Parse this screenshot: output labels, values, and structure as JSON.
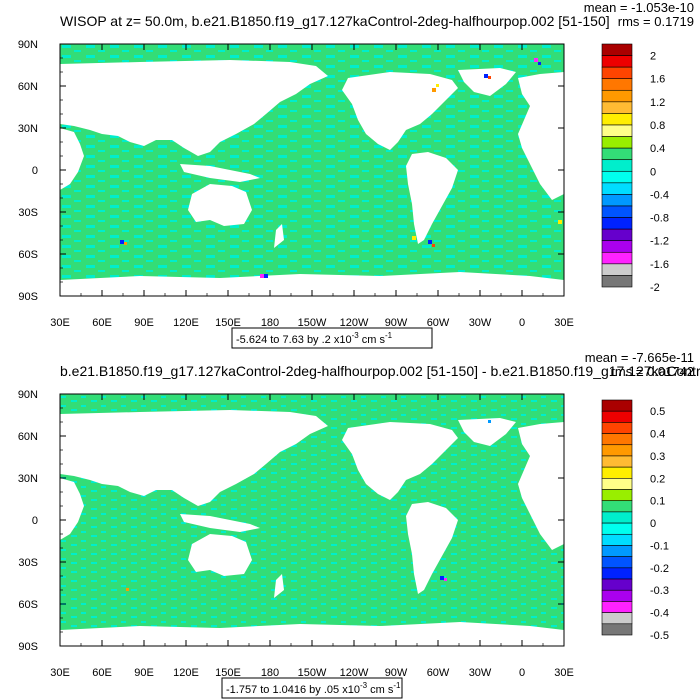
{
  "colors": {
    "land": "#ffffff",
    "ocean_main": "#33dd77",
    "ocean_alt": "#00eecc",
    "frame": "#000000",
    "warm_accent": "#ff9900",
    "cool_accent": "#0022ff"
  },
  "chart_data": [
    {
      "type": "heatmap",
      "title": "WISOP at z=  50.0m, b.e21.B1850.f19_g17.127kaControl-2deg-halfhourpop.002 [51-150]",
      "stats": {
        "mean": "mean = -1.053e-10",
        "rms": "rms =  0.1719"
      },
      "x_ticks": [
        "30E",
        "60E",
        "90E",
        "120E",
        "150E",
        "180",
        "150W",
        "120W",
        "90W",
        "60W",
        "30W",
        "0",
        "30E"
      ],
      "y_ticks": [
        "90N",
        "60N",
        "30N",
        "0",
        "30S",
        "60S",
        "90S"
      ],
      "xlim": [
        30,
        390
      ],
      "ylim": [
        -90,
        90
      ],
      "range_label": "-5.624 to 7.63 by .2 x10",
      "range_exponent": "-3",
      "range_units": " cm s",
      "range_units_exponent": "-1",
      "colorbar": {
        "labels": [
          "2",
          "1.6",
          "1.2",
          "0.8",
          "0.4",
          "0",
          "-0.4",
          "-0.8",
          "-1.2",
          "-1.6",
          "-2"
        ],
        "colors": [
          "#aa0000",
          "#ee0000",
          "#ff4400",
          "#ff7700",
          "#ff9900",
          "#ffbb33",
          "#ffee00",
          "#ffff88",
          "#99ee00",
          "#33dd77",
          "#00eecc",
          "#00ffee",
          "#00ddff",
          "#0099ff",
          "#0055ff",
          "#0022ff",
          "#6600cc",
          "#aa00ee",
          "#ff22ff",
          "#cccccc",
          "#777777"
        ]
      }
    },
    {
      "type": "heatmap",
      "title": "b.e21.B1850.f19_g17.127kaControl-2deg-halfhourpop.002 [51-150] - b.e21.B1850.f19_g17.127kaControl",
      "stats": {
        "mean": "mean = -7.665e-11",
        "rms": "rms =  0.01742"
      },
      "x_ticks": [
        "30E",
        "60E",
        "90E",
        "120E",
        "150E",
        "180",
        "150W",
        "120W",
        "90W",
        "60W",
        "30W",
        "0",
        "30E"
      ],
      "y_ticks": [
        "90N",
        "60N",
        "30N",
        "0",
        "30S",
        "60S",
        "90S"
      ],
      "xlim": [
        30,
        390
      ],
      "ylim": [
        -90,
        90
      ],
      "range_label": "-1.757 to 1.0416 by .05 x10",
      "range_exponent": "-3",
      "range_units": " cm s",
      "range_units_exponent": "-1",
      "colorbar": {
        "labels": [
          "0.5",
          "0.4",
          "0.3",
          "0.2",
          "0.1",
          "0",
          "-0.1",
          "-0.2",
          "-0.3",
          "-0.4",
          "-0.5"
        ],
        "colors": [
          "#aa0000",
          "#ee0000",
          "#ff4400",
          "#ff7700",
          "#ff9900",
          "#ffbb33",
          "#ffee00",
          "#ffff88",
          "#99ee00",
          "#33dd77",
          "#00eecc",
          "#00ffee",
          "#00ddff",
          "#0099ff",
          "#0055ff",
          "#0022ff",
          "#6600cc",
          "#aa00ee",
          "#ff22ff",
          "#cccccc",
          "#777777"
        ]
      }
    }
  ]
}
